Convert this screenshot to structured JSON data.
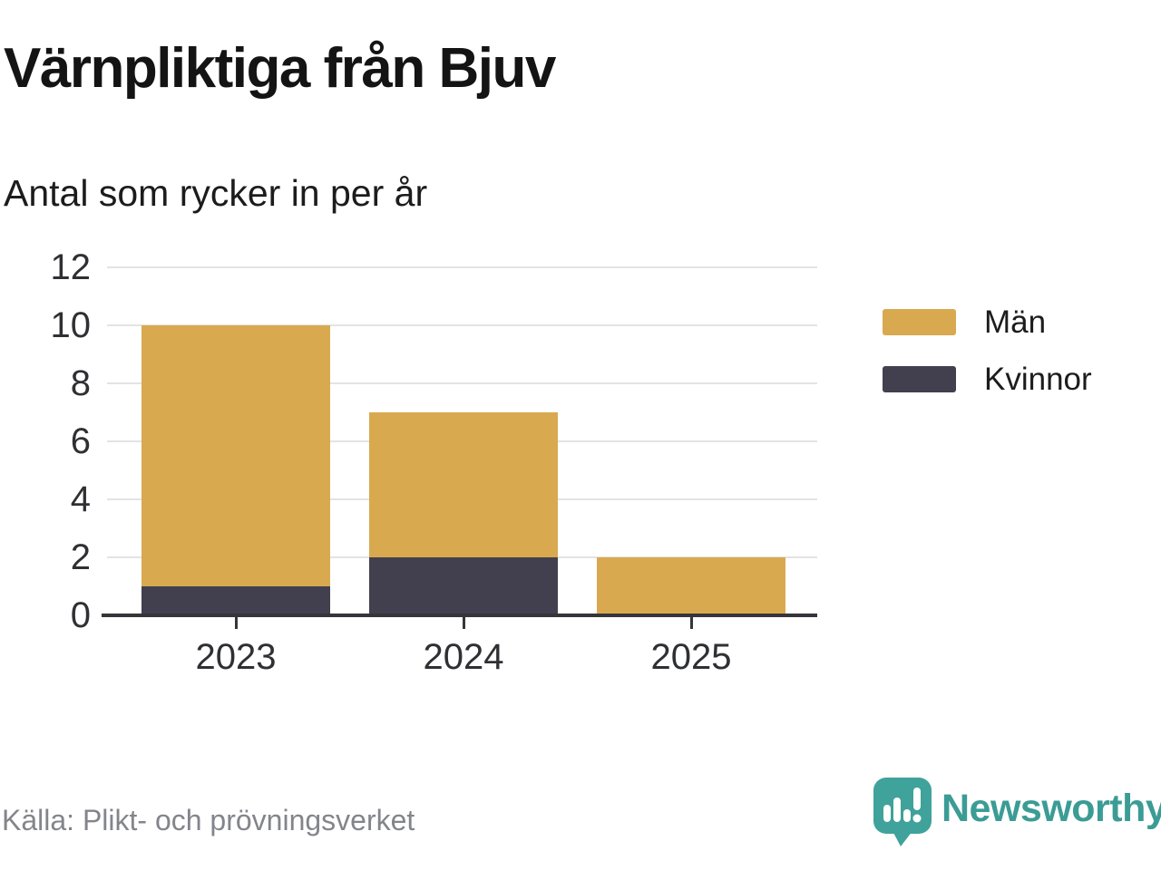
{
  "header": {
    "title": "Värnpliktiga från Bjuv",
    "subtitle": "Antal som rycker in per år"
  },
  "footer": {
    "source": "Källa: Plikt- och prövningsverket",
    "brand": "Newsworthy"
  },
  "colors": {
    "men": "#d9a950",
    "women": "#42404f",
    "axis": "#36363a",
    "grid": "#e3e3e5",
    "brand_teal": "#3b9c95",
    "source_gray": "#84858b"
  },
  "legend": {
    "items": [
      {
        "label": "Män",
        "color": "#d9a950"
      },
      {
        "label": "Kvinnor",
        "color": "#42404f"
      }
    ]
  },
  "chart_data": {
    "type": "bar",
    "stacked": true,
    "title": "Värnpliktiga från Bjuv",
    "subtitle": "Antal som rycker in per år",
    "categories": [
      "2023",
      "2024",
      "2025"
    ],
    "series": [
      {
        "name": "Män",
        "color": "#d9a950",
        "values": [
          9,
          5,
          2
        ]
      },
      {
        "name": "Kvinnor",
        "color": "#42404f",
        "values": [
          1,
          2,
          0
        ]
      }
    ],
    "totals": [
      10,
      7,
      2
    ],
    "stack_order": [
      "Kvinnor",
      "Män"
    ],
    "xlabel": "",
    "ylabel": "",
    "ylim": [
      0,
      12
    ],
    "yticks": [
      0,
      2,
      4,
      6,
      8,
      10,
      12
    ],
    "grid": true,
    "legend_position": "right"
  }
}
